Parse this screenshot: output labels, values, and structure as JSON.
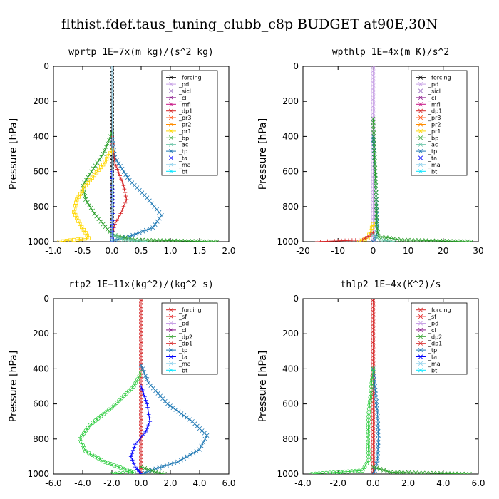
{
  "figure_title": "flthist.fdef.taus_tuning_clubb_c8p  BUDGET at90E,30N",
  "chart_data": [
    {
      "type": "line",
      "title": "wprtp  1E−7x(m kg)/(s^2 kg)",
      "ylabel": "Pressure [hPa]",
      "xlim": [
        -1.0,
        2.0
      ],
      "ylim": [
        1000,
        0
      ],
      "xticks": [
        "-1.0",
        "-0.5",
        "0.0",
        "0.5",
        "1.0",
        "1.5",
        "2.0"
      ],
      "yticks": [
        "0",
        "200",
        "400",
        "600",
        "800",
        "1000"
      ],
      "legend": [
        "_forcing",
        "_pd",
        "_sicl",
        "_cl",
        "_mfl",
        "_dp1",
        "_pr3",
        "_pr2",
        "_pr1",
        "_bp",
        "_ac",
        "_tp",
        "_ta",
        "_ma",
        "_bt"
      ],
      "series": [
        {
          "name": "_forcing",
          "color": "#000000",
          "marker": "o",
          "points": [
            [
              0,
              0
            ],
            [
              0,
              200
            ],
            [
              0,
              400
            ],
            [
              0,
              600
            ],
            [
              0,
              800
            ],
            [
              0,
              1000
            ]
          ]
        },
        {
          "name": "_tp",
          "color": "#1e78b4",
          "marker": "x",
          "points": [
            [
              0,
              400
            ],
            [
              0.05,
              520
            ],
            [
              0.3,
              650
            ],
            [
              0.6,
              750
            ],
            [
              0.85,
              850
            ],
            [
              0.7,
              920
            ],
            [
              0.3,
              970
            ],
            [
              0.05,
              990
            ],
            [
              0,
              1000
            ]
          ]
        },
        {
          "name": "_dp1",
          "color": "#d62728",
          "marker": "+",
          "points": [
            [
              0,
              400
            ],
            [
              0.05,
              550
            ],
            [
              0.2,
              680
            ],
            [
              0.25,
              760
            ],
            [
              0.15,
              840
            ],
            [
              0.05,
              900
            ],
            [
              0,
              960
            ],
            [
              0,
              1000
            ]
          ]
        },
        {
          "name": "_bp",
          "color": "#2ca02c",
          "marker": "x",
          "points": [
            [
              0,
              380
            ],
            [
              -0.15,
              500
            ],
            [
              -0.35,
              600
            ],
            [
              -0.5,
              680
            ],
            [
              -0.45,
              760
            ],
            [
              -0.3,
              840
            ],
            [
              -0.15,
              900
            ],
            [
              0,
              960
            ],
            [
              0.4,
              990
            ],
            [
              1.8,
              1000
            ]
          ]
        },
        {
          "name": "_pr1",
          "color": "#ffd700",
          "marker": "s",
          "points": [
            [
              0,
              480
            ],
            [
              -0.15,
              560
            ],
            [
              -0.45,
              680
            ],
            [
              -0.6,
              760
            ],
            [
              -0.65,
              830
            ],
            [
              -0.55,
              900
            ],
            [
              -0.45,
              950
            ],
            [
              -0.4,
              980
            ],
            [
              -0.9,
              1000
            ]
          ]
        },
        {
          "name": "_ac",
          "color": "#66c2a5",
          "marker": "x",
          "points": [
            [
              0,
              960
            ],
            [
              0.2,
              990
            ],
            [
              0.6,
              1000
            ]
          ]
        },
        {
          "name": "_ta",
          "color": "#0000ff",
          "marker": "+",
          "points": [
            [
              0,
              600
            ],
            [
              0.02,
              800
            ],
            [
              0,
              1000
            ]
          ]
        },
        {
          "name": "_ma",
          "color": "#87ceeb",
          "marker": "-",
          "points": [
            [
              0,
              0
            ],
            [
              0.01,
              500
            ],
            [
              0,
              1000
            ]
          ]
        }
      ]
    },
    {
      "type": "line",
      "title": "wpthlp  1E−4x(m K)/s^2",
      "ylabel": "Pressure [hPa]",
      "xlim": [
        -20,
        30
      ],
      "ylim": [
        1000,
        0
      ],
      "xticks": [
        "-20",
        "-10",
        "0",
        "10",
        "20",
        "30"
      ],
      "yticks": [
        "0",
        "200",
        "400",
        "600",
        "800",
        "1000"
      ],
      "legend": [
        "_forcing",
        "_pd",
        "_sicl",
        "_cl",
        "_mfl",
        "_dp1",
        "_pr3",
        "_pr2",
        "_pr1",
        "_bp",
        "_ac",
        "_tp",
        "_ta",
        "_ma",
        "_bt"
      ],
      "series": [
        {
          "name": "_forcing",
          "color": "#c8a2e6",
          "marker": "o",
          "points": [
            [
              0,
              0
            ],
            [
              0,
              200
            ],
            [
              0,
              400
            ],
            [
              0,
              600
            ],
            [
              0,
              800
            ],
            [
              0,
              1000
            ]
          ]
        },
        {
          "name": "_tp",
          "color": "#1e78b4",
          "marker": "x",
          "points": [
            [
              0,
              400
            ],
            [
              0.6,
              600
            ],
            [
              1.0,
              800
            ],
            [
              1.2,
              950
            ],
            [
              0.5,
              990
            ],
            [
              0,
              1000
            ]
          ]
        },
        {
          "name": "_bp",
          "color": "#2ca02c",
          "marker": "x",
          "points": [
            [
              0,
              300
            ],
            [
              0.4,
              500
            ],
            [
              0.8,
              700
            ],
            [
              1.0,
              900
            ],
            [
              1.5,
              970
            ],
            [
              8,
              990
            ],
            [
              28,
              1000
            ]
          ]
        },
        {
          "name": "_pr1",
          "color": "#ffd700",
          "marker": "s",
          "points": [
            [
              0,
              900
            ],
            [
              -1.5,
              980
            ],
            [
              -4,
              1000
            ]
          ]
        },
        {
          "name": "_dp1",
          "color": "#d62728",
          "marker": "+",
          "points": [
            [
              0,
              950
            ],
            [
              -3,
              990
            ],
            [
              -16,
              1000
            ]
          ]
        },
        {
          "name": "_ac",
          "color": "#66c2a5",
          "marker": "x",
          "points": [
            [
              0,
              960
            ],
            [
              2,
              990
            ],
            [
              6,
              1000
            ]
          ]
        }
      ]
    },
    {
      "type": "line",
      "title": "rtp2  1E−11x(kg^2)/(kg^2 s)",
      "ylabel": "Pressure [hPa]",
      "xlim": [
        -6.0,
        6.0
      ],
      "ylim": [
        1000,
        0
      ],
      "xticks": [
        "-6.0",
        "-4.0",
        "-2.0",
        "0.0",
        "2.0",
        "4.0",
        "6.0"
      ],
      "yticks": [
        "0",
        "200",
        "400",
        "600",
        "800",
        "1000"
      ],
      "legend": [
        "_forcing",
        "_sf",
        "_pd",
        "_cl",
        "_dp2",
        "_dp1",
        "_tp",
        "_ta",
        "_ma",
        "_bt"
      ],
      "series": [
        {
          "name": "_forcing",
          "color": "#d62728",
          "marker": "o",
          "points": [
            [
              0,
              0
            ],
            [
              0,
              200
            ],
            [
              0,
              400
            ],
            [
              0,
              600
            ],
            [
              0,
              800
            ],
            [
              0,
              1000
            ]
          ]
        },
        {
          "name": "_tp",
          "color": "#1e78b4",
          "marker": "x",
          "points": [
            [
              0,
              380
            ],
            [
              0.5,
              480
            ],
            [
              1.8,
              600
            ],
            [
              3.5,
              700
            ],
            [
              4.5,
              780
            ],
            [
              4.0,
              860
            ],
            [
              2.5,
              930
            ],
            [
              1.0,
              970
            ],
            [
              0,
              1000
            ]
          ]
        },
        {
          "name": "_dp1",
          "color": "#2ecc40",
          "marker": "o",
          "points": [
            [
              0,
              420
            ],
            [
              -0.5,
              500
            ],
            [
              -2.0,
              620
            ],
            [
              -3.5,
              720
            ],
            [
              -4.2,
              800
            ],
            [
              -3.8,
              870
            ],
            [
              -2.5,
              930
            ],
            [
              -1.2,
              970
            ],
            [
              -0.5,
              990
            ],
            [
              -2.0,
              1000
            ]
          ]
        },
        {
          "name": "_ta",
          "color": "#0000ff",
          "marker": "+",
          "points": [
            [
              0,
              500
            ],
            [
              0.4,
              600
            ],
            [
              0.6,
              700
            ],
            [
              0.3,
              760
            ],
            [
              -0.4,
              830
            ],
            [
              -0.7,
              900
            ],
            [
              -0.4,
              960
            ],
            [
              0,
              1000
            ]
          ]
        },
        {
          "name": "_dp2",
          "color": "#2ca02c",
          "marker": "x",
          "points": [
            [
              0,
              960
            ],
            [
              1.0,
              990
            ],
            [
              1.6,
              1000
            ]
          ]
        }
      ]
    },
    {
      "type": "line",
      "title": "thlp2  1E−4x(K^2)/s",
      "ylabel": "Pressure [hPa]",
      "xlim": [
        -4.0,
        6.0
      ],
      "ylim": [
        1000,
        0
      ],
      "xticks": [
        "-4.0",
        "-2.0",
        "0.0",
        "2.0",
        "4.0",
        "6.0"
      ],
      "yticks": [
        "0",
        "200",
        "400",
        "600",
        "800",
        "1000"
      ],
      "legend": [
        "_forcing",
        "_sf",
        "_pd",
        "_cl",
        "_dp2",
        "_dp1",
        "_tp",
        "_ta",
        "_ma",
        "_bt"
      ],
      "series": [
        {
          "name": "_forcing",
          "color": "#d62728",
          "marker": "o",
          "points": [
            [
              0,
              0
            ],
            [
              0,
              200
            ],
            [
              0,
              400
            ],
            [
              0,
              600
            ],
            [
              0,
              800
            ],
            [
              0,
              1000
            ]
          ]
        },
        {
          "name": "_tp",
          "color": "#1e78b4",
          "marker": "x",
          "points": [
            [
              0,
              400
            ],
            [
              0.1,
              500
            ],
            [
              0.25,
              650
            ],
            [
              0.3,
              800
            ],
            [
              0.25,
              920
            ],
            [
              0.1,
              980
            ],
            [
              0,
              1000
            ]
          ]
        },
        {
          "name": "_dp1",
          "color": "#2ecc40",
          "marker": "o",
          "points": [
            [
              0,
              400
            ],
            [
              -0.1,
              500
            ],
            [
              -0.25,
              650
            ],
            [
              -0.3,
              800
            ],
            [
              -0.25,
              920
            ],
            [
              -0.6,
              980
            ],
            [
              -3.5,
              1000
            ]
          ]
        },
        {
          "name": "_dp2",
          "color": "#2ca02c",
          "marker": "x",
          "points": [
            [
              0,
              960
            ],
            [
              1.0,
              990
            ],
            [
              5.5,
              1000
            ]
          ]
        }
      ]
    }
  ]
}
